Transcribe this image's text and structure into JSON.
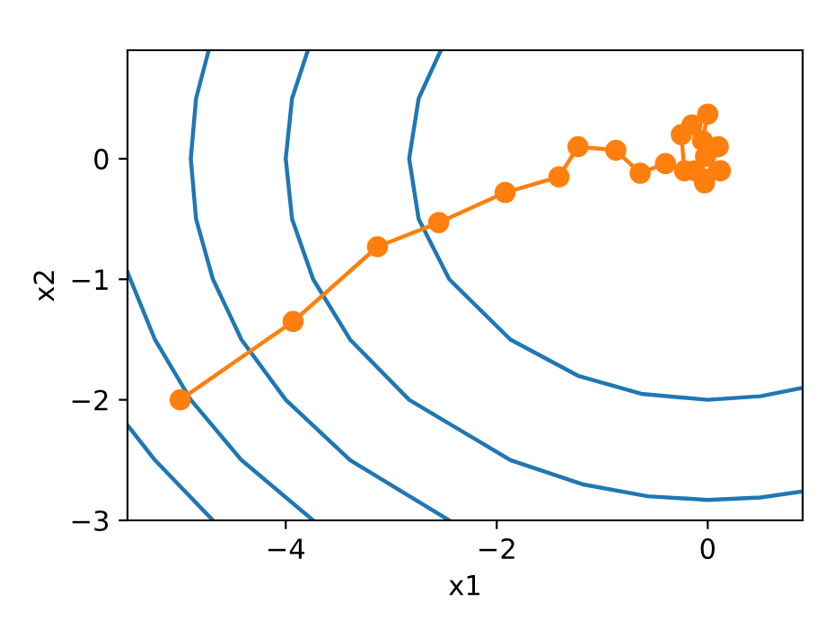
{
  "chart_data": {
    "type": "line",
    "xlabel": "x1",
    "ylabel": "x2",
    "xlim": [
      -5.5,
      0.9
    ],
    "ylim": [
      -3,
      0.9
    ],
    "xticks": [
      -4,
      -2,
      0
    ],
    "yticks": [
      -3,
      -2,
      -1,
      0
    ],
    "grid": false,
    "legend": false,
    "line_style": "solid",
    "series": [
      {
        "color": "#1f77b4",
        "marker": "none",
        "x": [
          -2.53,
          -2.74,
          -2.83,
          -2.74,
          -2.45,
          -1.87,
          -1.23,
          -0.63,
          0,
          0.5,
          0.9
        ],
        "values": [
          0.9,
          0.5,
          0,
          -0.5,
          -1,
          -1.5,
          -1.8,
          -1.95,
          -2,
          -1.97,
          -1.9
        ]
      },
      {
        "color": "#1f77b4",
        "marker": "none",
        "x": [
          -3.79,
          -3.94,
          -4,
          -3.94,
          -3.74,
          -3.39,
          -2.83,
          -1.87,
          -1.19,
          -0.57,
          0,
          0.5,
          0.9
        ],
        "values": [
          0.9,
          0.5,
          0,
          -0.5,
          -1,
          -1.5,
          -2,
          -2.5,
          -2.7,
          -2.8,
          -2.83,
          -2.81,
          -2.76
        ]
      },
      {
        "color": "#1f77b4",
        "marker": "none",
        "x": [
          -4.73,
          -4.85,
          -4.9,
          -4.85,
          -4.69,
          -4.42,
          -4,
          -3.39,
          -2.45
        ],
        "values": [
          0.9,
          0.5,
          0,
          -0.5,
          -1,
          -1.5,
          -2,
          -2.5,
          -3
        ]
      },
      {
        "color": "#1f77b4",
        "marker": "none",
        "x": [
          -5.5,
          -5.24,
          -4.9,
          -4.42,
          -3.74
        ],
        "values": [
          -0.94,
          -1.5,
          -2,
          -2.5,
          -3
        ]
      },
      {
        "color": "#1f77b4",
        "marker": "none",
        "x": [
          -5.5,
          -5.24,
          -4.69
        ],
        "values": [
          -2.21,
          -2.5,
          -3
        ]
      },
      {
        "color": "#ff7f0e",
        "marker": "circle",
        "x": [
          -5,
          -3.93,
          -3.13,
          -2.55,
          -1.92,
          -1.41,
          -1.23,
          -0.87,
          -0.64,
          -0.4,
          -0.22,
          -0.25,
          -0.15,
          0,
          -0.05,
          0.1,
          -0.03,
          -0.12,
          0.12,
          -0.02
        ],
        "values": [
          -2,
          -1.35,
          -0.73,
          -0.53,
          -0.28,
          -0.15,
          0.1,
          0.07,
          -0.12,
          -0.04,
          -0.1,
          0.2,
          0.28,
          0.37,
          0.15,
          0.1,
          -0.2,
          -0.1,
          -0.1,
          0.02
        ]
      }
    ]
  }
}
